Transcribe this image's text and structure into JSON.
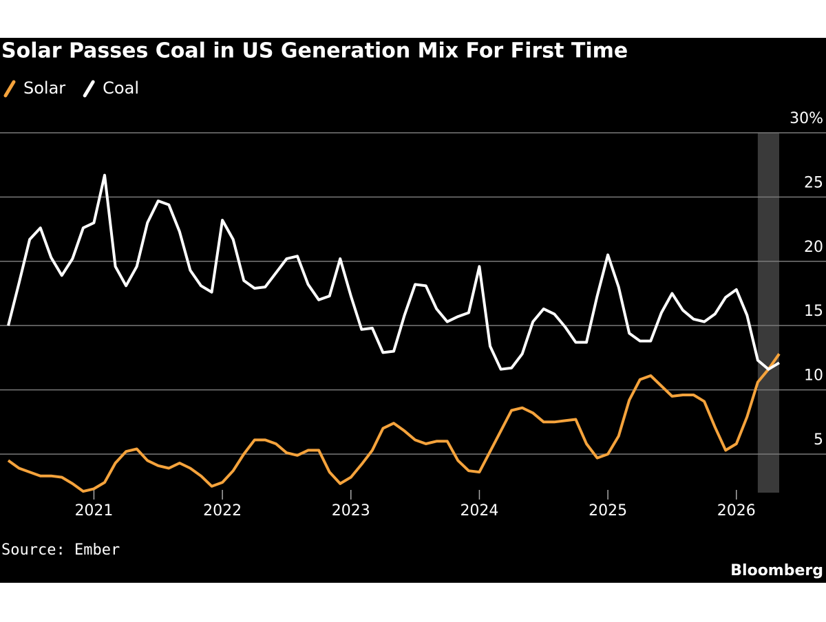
{
  "chart_data": {
    "type": "line",
    "title": "Solar Passes Coal in US Generation Mix For First Time",
    "source": "Source: Ember",
    "brand": "Bloomberg",
    "x": [
      "2020-05",
      "2020-06",
      "2020-07",
      "2020-08",
      "2020-09",
      "2020-10",
      "2020-11",
      "2020-12",
      "2021-01",
      "2021-02",
      "2021-03",
      "2021-04",
      "2021-05",
      "2021-06",
      "2021-07",
      "2021-08",
      "2021-09",
      "2021-10",
      "2021-11",
      "2021-12",
      "2022-01",
      "2022-02",
      "2022-03",
      "2022-04",
      "2022-05",
      "2022-06",
      "2022-07",
      "2022-08",
      "2022-09",
      "2022-10",
      "2022-11",
      "2022-12",
      "2023-01",
      "2023-02",
      "2023-03",
      "2023-04",
      "2023-05",
      "2023-06",
      "2023-07",
      "2023-08",
      "2023-09",
      "2023-10",
      "2023-11",
      "2023-12",
      "2024-01",
      "2024-02",
      "2024-03",
      "2024-04",
      "2024-05",
      "2024-06",
      "2024-07",
      "2024-08",
      "2024-09",
      "2024-10",
      "2024-11",
      "2024-12",
      "2025-01",
      "2025-02",
      "2025-03",
      "2025-04",
      "2025-05",
      "2025-06",
      "2025-07",
      "2025-08",
      "2025-09",
      "2025-10",
      "2025-11",
      "2025-12",
      "2026-01",
      "2026-02",
      "2026-03",
      "2026-04",
      "2026-05"
    ],
    "series": [
      {
        "name": "Solar",
        "color": "#f5a33c",
        "values": [
          4.5,
          3.9,
          3.6,
          3.3,
          3.3,
          3.2,
          2.7,
          2.1,
          2.3,
          2.8,
          4.3,
          5.2,
          5.4,
          4.5,
          4.1,
          3.9,
          4.3,
          3.9,
          3.3,
          2.5,
          2.8,
          3.7,
          5.0,
          6.1,
          6.1,
          5.8,
          5.1,
          4.9,
          5.3,
          5.3,
          3.6,
          2.7,
          3.2,
          4.2,
          5.3,
          7.0,
          7.4,
          6.8,
          6.1,
          5.8,
          6.0,
          6.0,
          4.5,
          3.7,
          3.6,
          5.2,
          6.8,
          8.4,
          8.6,
          8.2,
          7.5,
          7.5,
          7.6,
          7.7,
          5.8,
          4.7,
          5.0,
          6.4,
          9.2,
          10.8,
          11.1,
          10.3,
          9.5,
          9.6,
          9.6,
          9.1,
          7.1,
          5.3,
          5.8,
          7.9,
          10.6,
          11.6,
          12.8
        ]
      },
      {
        "name": "Coal",
        "color": "#ffffff",
        "values": [
          15.0,
          18.3,
          21.7,
          22.6,
          20.3,
          18.9,
          20.2,
          22.6,
          23.0,
          26.7,
          19.6,
          18.1,
          19.6,
          23.0,
          24.7,
          24.4,
          22.3,
          19.3,
          18.1,
          17.6,
          23.2,
          21.7,
          18.5,
          17.9,
          18.0,
          19.1,
          20.2,
          20.4,
          18.2,
          17.0,
          17.3,
          20.2,
          17.3,
          14.7,
          14.8,
          12.9,
          13.0,
          15.8,
          18.2,
          18.1,
          16.3,
          15.3,
          15.7,
          16.0,
          19.6,
          13.4,
          11.6,
          11.7,
          12.8,
          15.3,
          16.3,
          15.9,
          14.9,
          13.7,
          13.7,
          17.3,
          20.5,
          18.0,
          14.4,
          13.8,
          13.8,
          16.0,
          17.5,
          16.2,
          15.5,
          15.3,
          15.9,
          17.2,
          17.8,
          15.8,
          12.3,
          11.6,
          12.1
        ]
      }
    ],
    "xticks": [
      {
        "value": "2021-01",
        "label": "2021"
      },
      {
        "value": "2022-01",
        "label": "2022"
      },
      {
        "value": "2023-01",
        "label": "2023"
      },
      {
        "value": "2024-01",
        "label": "2024"
      },
      {
        "value": "2025-01",
        "label": "2025"
      },
      {
        "value": "2026-01",
        "label": "2026"
      }
    ],
    "ylim": [
      2,
      30
    ],
    "yticks": [
      5,
      10,
      15,
      20,
      25,
      {
        "value": 30,
        "label": "30%"
      }
    ],
    "grid": true,
    "highlight": {
      "from": "2026-03",
      "to": "2026-05",
      "color": "#3a3a3a"
    },
    "background": "#000000"
  }
}
